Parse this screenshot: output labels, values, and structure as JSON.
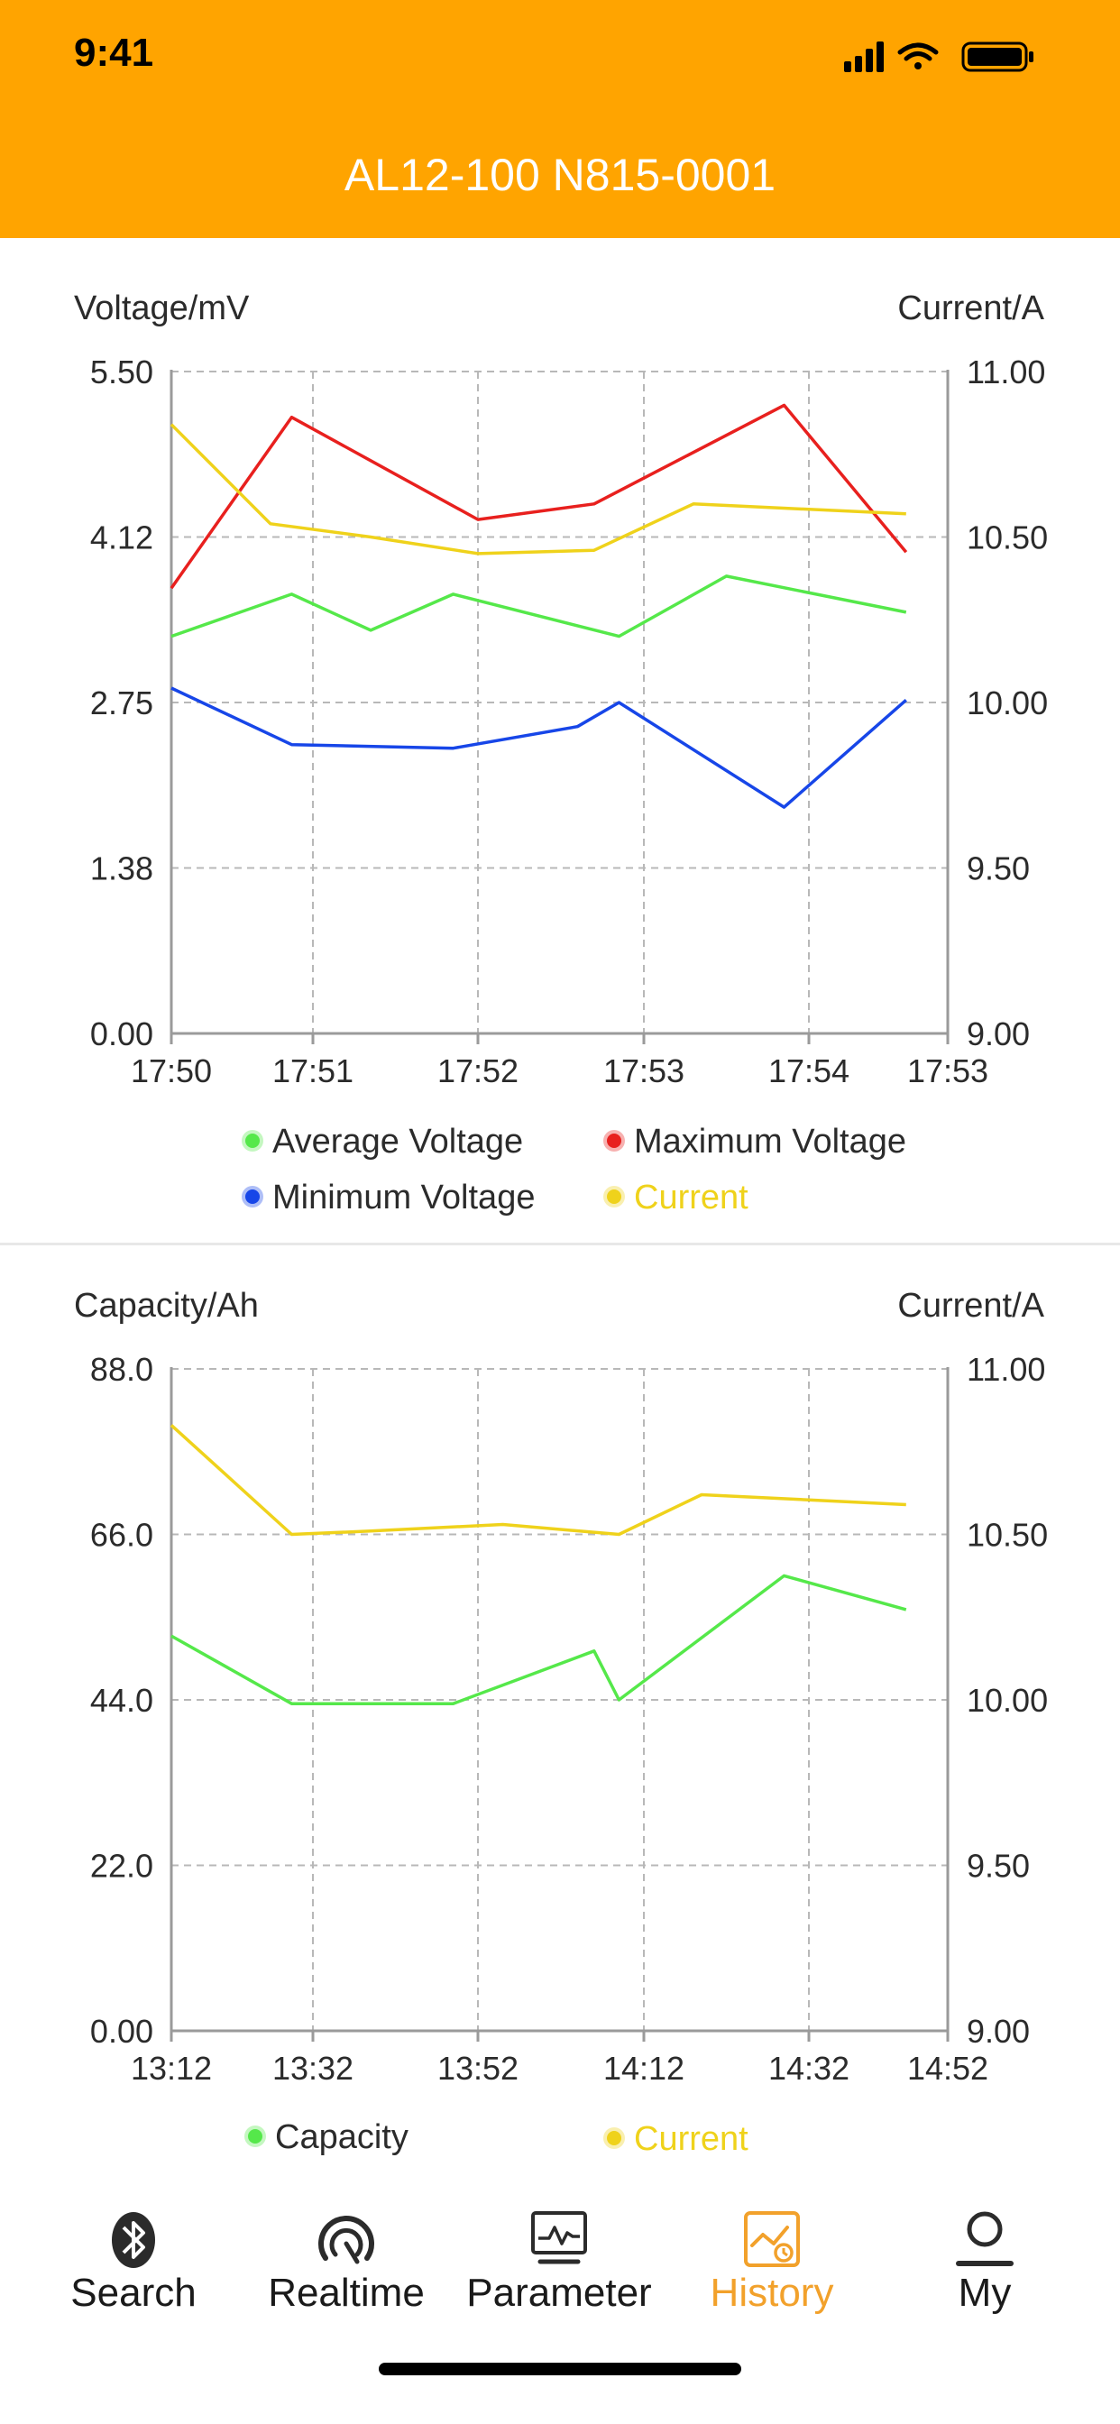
{
  "status_bar": {
    "time": "9:41"
  },
  "header": {
    "title": "AL12-100 N815-0001"
  },
  "colors": {
    "header_bg": "#FFA400",
    "average_voltage": "#55E84A",
    "maximum_voltage": "#E8201E",
    "minimum_voltage": "#1746E8",
    "current": "#EFD21B",
    "capacity": "#55E84A",
    "tab_active": "#F2A12B"
  },
  "chart_data": [
    {
      "type": "line",
      "y_left_label": "Voltage/mV",
      "y_right_label": "Current/A",
      "x_ticks": [
        "17:50",
        "17:51",
        "17:52",
        "17:53",
        "17:54",
        "17:53"
      ],
      "y_left_ticks": [
        "5.50",
        "4.12",
        "2.75",
        "1.38",
        "0.00"
      ],
      "y_right_ticks": [
        "11.00",
        "10.50",
        "10.00",
        "9.50",
        "9.00"
      ],
      "ylim_left": [
        0,
        5.5
      ],
      "ylim_right": [
        9.0,
        11.0
      ],
      "grid": true,
      "series": [
        {
          "name": "Average Voltage",
          "axis": "left",
          "color_key": "average_voltage",
          "x": [
            0,
            0.85,
            1.35,
            1.85,
            2.85,
            3.5,
            4.7
          ],
          "y": [
            3.3,
            3.65,
            3.35,
            3.65,
            3.3,
            3.8,
            3.5
          ]
        },
        {
          "name": "Maximum Voltage",
          "axis": "left",
          "color_key": "maximum_voltage",
          "x": [
            0,
            0.85,
            2.0,
            2.7,
            3.85,
            4.7
          ],
          "y": [
            3.7,
            5.12,
            4.27,
            4.4,
            5.22,
            4.0
          ]
        },
        {
          "name": "Minimum Voltage",
          "axis": "left",
          "color_key": "minimum_voltage",
          "x": [
            0,
            0.85,
            1.85,
            2.6,
            2.85,
            3.85,
            4.7
          ],
          "y": [
            2.87,
            2.4,
            2.37,
            2.55,
            2.75,
            1.88,
            2.77
          ]
        },
        {
          "name": "Current",
          "axis": "right",
          "color_key": "current",
          "x": [
            0,
            0.7,
            1.35,
            2.0,
            2.7,
            3.3,
            4.7
          ],
          "y": [
            10.84,
            10.54,
            10.5,
            10.45,
            10.46,
            10.6,
            10.57
          ]
        }
      ],
      "legend": {
        "position": "bottom",
        "items": [
          "Average Voltage",
          "Maximum Voltage",
          "Minimum Voltage",
          "Current"
        ]
      }
    },
    {
      "type": "line",
      "y_left_label": "Capacity/Ah",
      "y_right_label": "Current/A",
      "x_ticks": [
        "13:12",
        "13:32",
        "13:52",
        "14:12",
        "14:32",
        "14:52"
      ],
      "y_left_ticks": [
        "88.0",
        "66.0",
        "44.0",
        "22.0",
        "0.00"
      ],
      "y_right_ticks": [
        "11.00",
        "10.50",
        "10.00",
        "9.50",
        "9.00"
      ],
      "ylim_left": [
        0,
        88
      ],
      "ylim_right": [
        9.0,
        11.0
      ],
      "grid": true,
      "series": [
        {
          "name": "Capacity",
          "axis": "left",
          "color_key": "capacity",
          "x": [
            0,
            0.85,
            1.85,
            2.7,
            2.85,
            3.85,
            4.7
          ],
          "y": [
            52.5,
            43.5,
            43.5,
            50.5,
            44,
            60.5,
            56
          ]
        },
        {
          "name": "Current",
          "axis": "right",
          "color_key": "current",
          "x": [
            0,
            0.85,
            1.35,
            2.15,
            2.85,
            3.35,
            4.7
          ],
          "y": [
            10.83,
            10.5,
            10.51,
            10.53,
            10.5,
            10.62,
            10.59
          ]
        }
      ],
      "legend": {
        "position": "bottom",
        "items": [
          "Capacity",
          "Current"
        ]
      }
    }
  ],
  "tabbar": {
    "items": [
      {
        "label": "Search",
        "icon": "bluetooth-icon"
      },
      {
        "label": "Realtime",
        "icon": "gauge-icon"
      },
      {
        "label": "Parameter",
        "icon": "monitor-icon"
      },
      {
        "label": "History",
        "icon": "history-chart-icon",
        "active": true
      },
      {
        "label": "My",
        "icon": "user-icon"
      }
    ]
  }
}
